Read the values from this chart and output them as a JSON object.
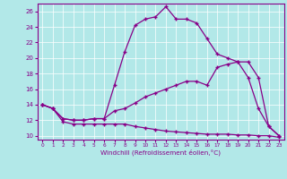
{
  "xlabel": "Windchill (Refroidissement éolien,°C)",
  "background_color": "#b2e8e8",
  "grid_color": "#ffffff",
  "line_color": "#880088",
  "xlim": [
    -0.5,
    23.5
  ],
  "ylim": [
    9.5,
    27
  ],
  "yticks": [
    10,
    12,
    14,
    16,
    18,
    20,
    22,
    24,
    26
  ],
  "xticks": [
    0,
    1,
    2,
    3,
    4,
    5,
    6,
    7,
    8,
    9,
    10,
    11,
    12,
    13,
    14,
    15,
    16,
    17,
    18,
    19,
    20,
    21,
    22,
    23
  ],
  "series": [
    {
      "x": [
        0,
        1,
        2,
        3,
        4,
        5,
        6,
        7,
        8,
        9,
        10,
        11,
        12,
        13,
        14,
        15,
        16,
        17,
        18,
        19,
        20,
        21,
        22,
        23
      ],
      "y": [
        14,
        13.5,
        11.8,
        11.5,
        11.5,
        11.5,
        11.5,
        11.5,
        11.5,
        11.2,
        11.0,
        10.8,
        10.6,
        10.5,
        10.4,
        10.3,
        10.2,
        10.2,
        10.2,
        10.1,
        10.1,
        10.0,
        10.0,
        9.8
      ]
    },
    {
      "x": [
        0,
        1,
        2,
        3,
        4,
        5,
        6,
        7,
        8,
        9,
        10,
        11,
        12,
        13,
        14,
        15,
        16,
        17,
        18,
        19,
        20,
        21,
        22,
        23
      ],
      "y": [
        14,
        13.5,
        12.2,
        12.0,
        12.0,
        12.2,
        12.2,
        13.2,
        13.5,
        14.2,
        15.0,
        15.5,
        16.0,
        16.5,
        17.0,
        17.0,
        16.5,
        18.8,
        19.2,
        19.5,
        17.5,
        13.5,
        11.2,
        10.0
      ]
    },
    {
      "x": [
        0,
        1,
        2,
        3,
        4,
        5,
        6,
        7,
        8,
        9,
        10,
        11,
        12,
        13,
        14,
        15,
        16,
        17,
        18,
        19,
        20,
        21,
        22,
        23
      ],
      "y": [
        14,
        13.5,
        12.2,
        12.0,
        12.0,
        12.2,
        12.2,
        16.5,
        20.8,
        24.2,
        25.0,
        25.3,
        26.6,
        25.0,
        25.0,
        24.5,
        22.5,
        20.5,
        20.0,
        19.5,
        19.5,
        17.5,
        11.2,
        10.0
      ]
    }
  ]
}
